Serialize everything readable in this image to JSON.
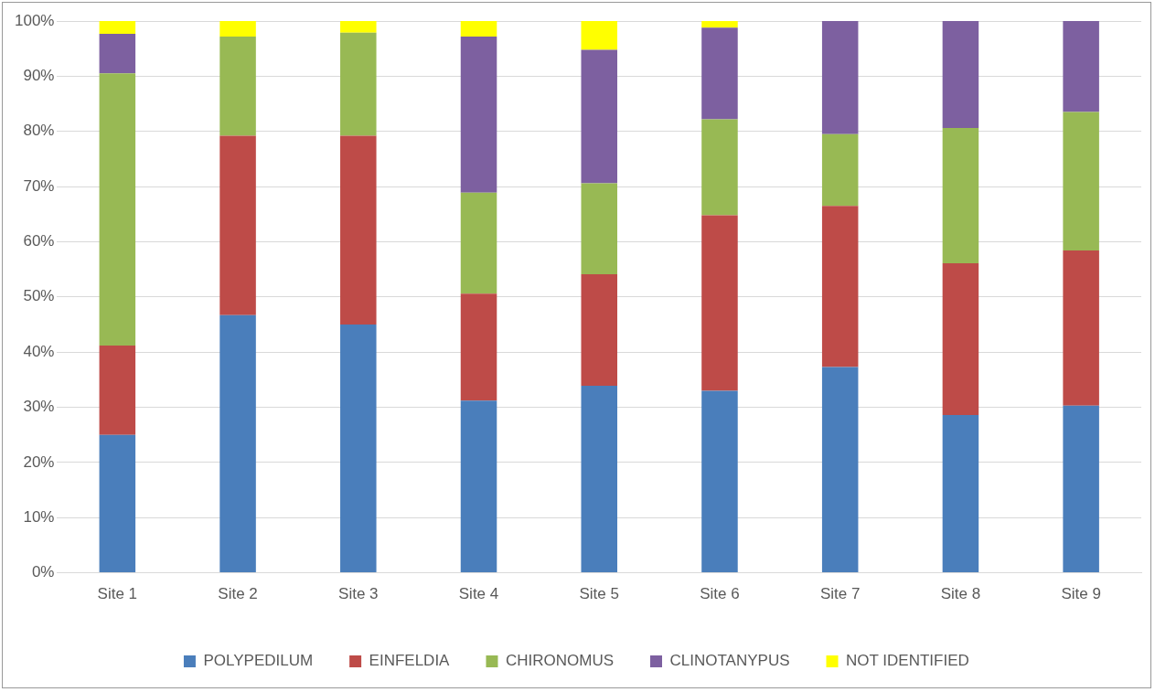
{
  "chart_data": {
    "type": "bar",
    "stacked": true,
    "categories": [
      "Site 1",
      "Site 2",
      "Site 3",
      "Site 4",
      "Site 5",
      "Site 6",
      "Site 7",
      "Site 8",
      "Site 9"
    ],
    "series": [
      {
        "name": "POLYPEDILUM",
        "color": "#4a7ebb",
        "values": [
          25,
          46.7,
          45,
          31.2,
          33.9,
          33,
          37.3,
          28.6,
          30.3
        ]
      },
      {
        "name": "EINFELDIA",
        "color": "#be4b48",
        "values": [
          16.2,
          32.5,
          34.2,
          19.4,
          20.2,
          31.8,
          29.2,
          27.5,
          28.1
        ]
      },
      {
        "name": "CHIRONOMUS",
        "color": "#98b954",
        "values": [
          49.3,
          18,
          18.7,
          18.3,
          16.5,
          17.4,
          13,
          24.5,
          25.1
        ]
      },
      {
        "name": "CLINOTANYPUS",
        "color": "#7d60a0",
        "values": [
          7.2,
          0,
          0,
          28.3,
          24.2,
          16.6,
          20.5,
          19.4,
          16.5
        ]
      },
      {
        "name": "NOT IDENTIFIED",
        "color": "#ffff00",
        "values": [
          2.3,
          2.8,
          2.1,
          2.8,
          5.2,
          1.2,
          0,
          0,
          0
        ]
      }
    ],
    "ylim": [
      0,
      100
    ],
    "yticks": [
      {
        "value": 0,
        "label": "0%"
      },
      {
        "value": 10,
        "label": "10%"
      },
      {
        "value": 20,
        "label": "20%"
      },
      {
        "value": 30,
        "label": "30%"
      },
      {
        "value": 40,
        "label": "40%"
      },
      {
        "value": 50,
        "label": "50%"
      },
      {
        "value": 60,
        "label": "60%"
      },
      {
        "value": 70,
        "label": "70%"
      },
      {
        "value": 80,
        "label": "80%"
      },
      {
        "value": 90,
        "label": "90%"
      },
      {
        "value": 100,
        "label": "100%"
      }
    ],
    "grid": "y",
    "legend": "bottom"
  }
}
